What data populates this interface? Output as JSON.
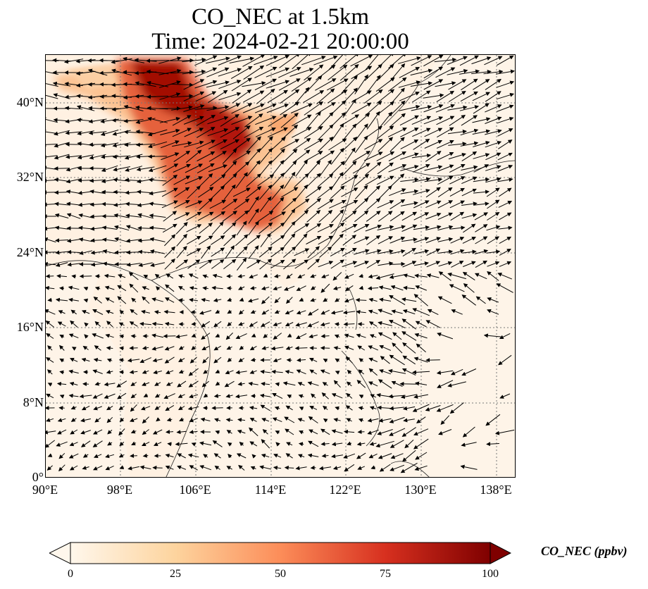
{
  "title_line1": "CO_NEC at 1.5km",
  "title_line2": "Time: 2024-02-21 20:00:00",
  "lat_labels": [
    "40°N",
    "32°N",
    "24°N",
    "16°N",
    "8°N",
    "0°"
  ],
  "lon_labels": [
    "90°E",
    "98°E",
    "106°E",
    "114°E",
    "122°E",
    "130°E",
    "138°E"
  ],
  "colorbar": {
    "label": "CO_NEC (ppbv)",
    "ticks": [
      "0",
      "25",
      "50",
      "75",
      "100"
    ],
    "colors": [
      "#fff7ec",
      "#fdd49e",
      "#fc8d59",
      "#d7301f",
      "#7f0000"
    ],
    "range": [
      0,
      100
    ]
  },
  "map": {
    "lon_range": [
      90,
      140
    ],
    "lat_range": [
      0,
      45
    ],
    "gridline_style": "dotted",
    "background_color": "#fef4e8",
    "arrow_color": "#000000",
    "plume_color": "#9b0d05"
  }
}
